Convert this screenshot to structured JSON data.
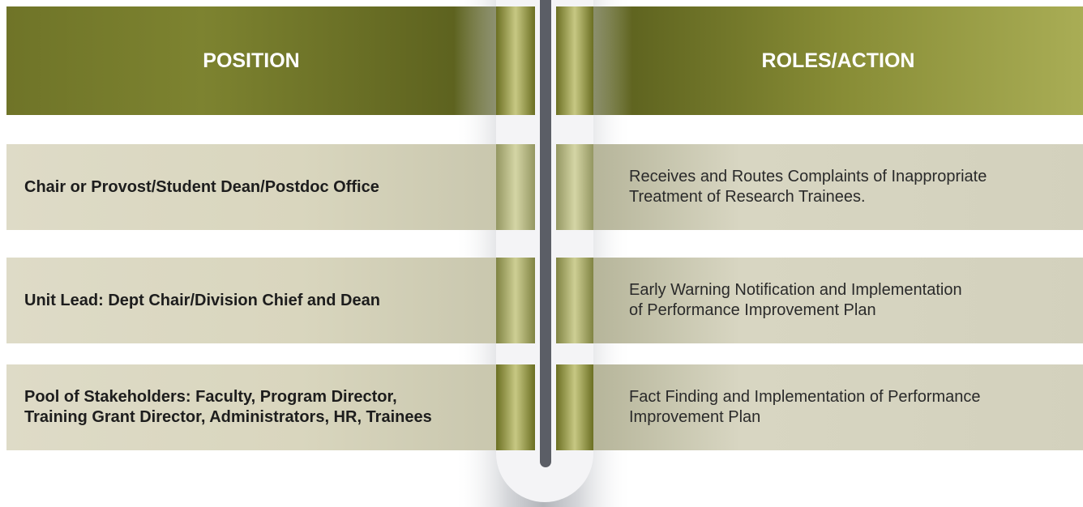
{
  "header": {
    "position": "POSITION",
    "roles": "ROLES/ACTION"
  },
  "rows": [
    {
      "position": [
        "Chair or Provost/Student Dean/Postdoc Office"
      ],
      "roles": [
        "Receives and Routes Complaints of Inappropriate",
        "Treatment of Research Trainees."
      ]
    },
    {
      "position": [
        "Unit Lead: Dept Chair/Division Chief and Dean"
      ],
      "roles": [
        "Early Warning Notification and Implementation",
        "of Performance Improvement Plan"
      ]
    },
    {
      "position": [
        "Pool of Stakeholders: Faculty, Program Director,",
        "Training Grant Director, Administrators, HR, Trainees"
      ],
      "roles": [
        "Fact Finding and Implementation of Performance",
        "Improvement Plan"
      ]
    }
  ]
}
